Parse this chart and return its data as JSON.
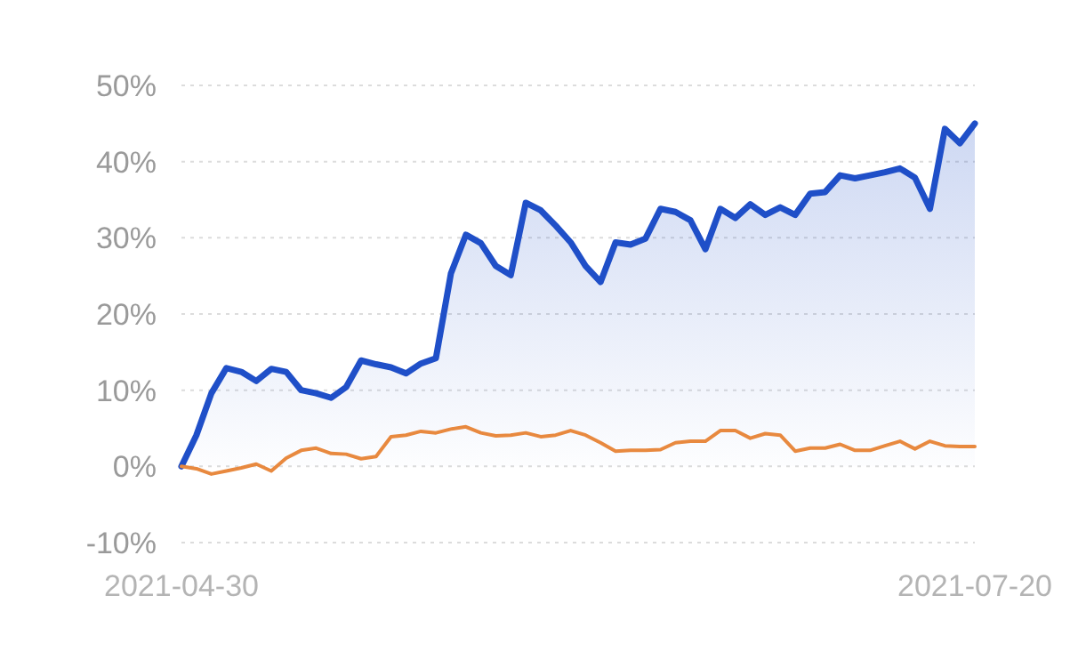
{
  "chart_data": {
    "type": "line",
    "categories": [
      "2021-04-30",
      null,
      null,
      null,
      null,
      null,
      null,
      null,
      null,
      null,
      null,
      null,
      null,
      null,
      null,
      null,
      null,
      null,
      null,
      null,
      null,
      null,
      null,
      null,
      null,
      null,
      null,
      null,
      null,
      null,
      null,
      null,
      null,
      null,
      null,
      null,
      null,
      null,
      null,
      null,
      null,
      null,
      null,
      null,
      null,
      null,
      null,
      null,
      null,
      null,
      null,
      null,
      null,
      "2021-07-20"
    ],
    "series": [
      {
        "type": "area",
        "color": "#1f4fc8",
        "values": [
          0,
          4.1,
          9.6,
          12.9,
          12.4,
          11.2,
          12.8,
          12.4,
          10.0,
          9.6,
          9.0,
          10.4,
          13.9,
          13.4,
          13.0,
          12.2,
          13.5,
          14.2,
          25.3,
          30.4,
          29.3,
          26.3,
          25.1,
          34.6,
          33.6,
          31.6,
          29.4,
          26.3,
          24.2,
          29.4,
          29.1,
          29.9,
          33.8,
          33.4,
          32.3,
          28.5,
          33.8,
          32.6,
          34.4,
          33.0,
          34.0,
          33.0,
          35.8,
          36.0,
          38.2,
          37.8,
          38.2,
          38.6,
          39.1,
          37.9,
          33.8,
          44.3,
          42.4,
          45.0
        ]
      },
      {
        "color": "#e8893f",
        "values": [
          0,
          -0.3,
          -1.0,
          -0.6,
          -0.2,
          0.3,
          -0.6,
          1.1,
          2.1,
          2.4,
          1.7,
          1.6,
          1.0,
          1.3,
          3.9,
          4.1,
          4.6,
          4.4,
          4.9,
          5.2,
          4.4,
          4.0,
          4.1,
          4.4,
          3.9,
          4.1,
          4.7,
          4.1,
          3.1,
          2.0,
          2.1,
          2.1,
          2.2,
          3.1,
          3.3,
          3.3,
          4.7,
          4.7,
          3.7,
          4.3,
          4.1,
          2.0,
          2.4,
          2.4,
          2.9,
          2.1,
          2.1,
          2.7,
          3.3,
          2.3,
          3.3,
          2.7,
          2.6,
          2.6
        ]
      }
    ],
    "ylim": [
      -10,
      50
    ],
    "yticks": [
      {
        "value": -10,
        "label": "-10%"
      },
      {
        "value": 0,
        "label": "0%"
      },
      {
        "value": 10,
        "label": "10%"
      },
      {
        "value": 20,
        "label": "20%"
      },
      {
        "value": 30,
        "label": "30%"
      },
      {
        "value": 40,
        "label": "40%"
      },
      {
        "value": 50,
        "label": "50%"
      }
    ],
    "grid": "y"
  }
}
